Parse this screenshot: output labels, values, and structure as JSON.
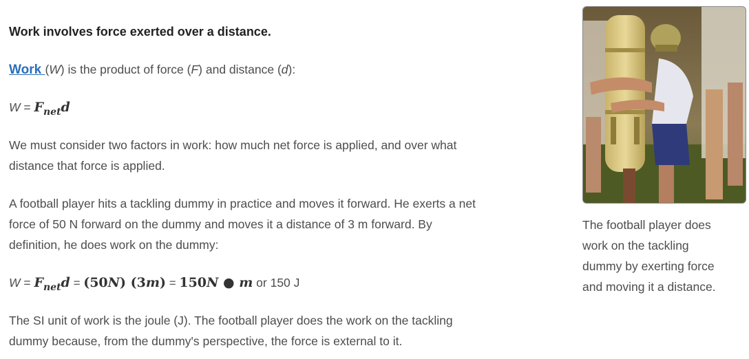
{
  "heading": "Work involves force exerted over a distance.",
  "definition": {
    "link": "Work ",
    "p1": "(",
    "sym_w": "W",
    "p2": ") is the product of force (",
    "sym_f": "F",
    "p3": ") and distance (",
    "sym_d": "d",
    "p4": "):"
  },
  "formula1": {
    "lhs": "W",
    "eq": " = ",
    "F": "F",
    "sub": "net",
    "d": "d"
  },
  "para1": [
    "We must consider two factors in work: how much net force is applied, and over what",
    "distance that force is applied."
  ],
  "para2": [
    "A football player hits a tackling dummy in practice and moves it forward. He exerts a net",
    "force of 50 N forward on the dummy and moves it a distance of 3 m forward. By",
    "definition, he does work on the dummy:"
  ],
  "formula2": {
    "lhs": "W",
    "eq1": " = ",
    "F": "F",
    "sub": "net",
    "d": "d",
    "eq2": " = ",
    "t1": "(50",
    "u1": "N",
    "t1b": ")",
    "t2": " (3",
    "u2": "m",
    "t2b": ")",
    "eq3": " = ",
    "t3": "150",
    "u3": "N",
    "dot": " ● ",
    "u4": "m",
    "tail": " or 150 J"
  },
  "para3": [
    "The SI unit of work is the joule (J). The football player does the work on the tackling",
    "dummy because, from the dummy's perspective, the force is external to it."
  ],
  "caption": [
    "The football player does",
    "work on the tackling",
    "dummy by exerting force",
    "and moving it a distance."
  ]
}
